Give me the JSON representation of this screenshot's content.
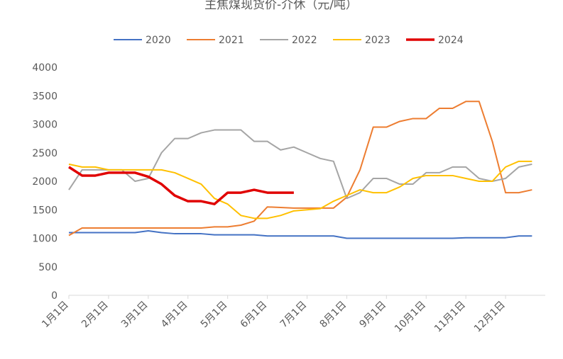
{
  "chart_data": {
    "type": "line",
    "title": "主焦煤现货价-介休（元/吨）",
    "categories": [
      "1月1日",
      null,
      null,
      "2月1日",
      null,
      null,
      "3月1日",
      null,
      null,
      "4月1日",
      null,
      null,
      "5月1日",
      null,
      null,
      "6月1日",
      null,
      null,
      "7月1日",
      null,
      null,
      "8月1日",
      null,
      null,
      "9月1日",
      null,
      null,
      "10月1日",
      null,
      null,
      "11月1日",
      null,
      null,
      "12月1日",
      null,
      null
    ],
    "ylim": [
      0,
      4000
    ],
    "yticks": [
      0,
      500,
      1000,
      1500,
      2000,
      2500,
      3000,
      3500,
      4000
    ],
    "grid": false,
    "series": [
      {
        "name": "2020",
        "color": "#4472c4",
        "width": 2,
        "values": [
          1100,
          1100,
          1100,
          1100,
          1100,
          1100,
          1130,
          1100,
          1080,
          1080,
          1080,
          1060,
          1060,
          1060,
          1060,
          1040,
          1040,
          1040,
          1040,
          1040,
          1040,
          1000,
          1000,
          1000,
          1000,
          1000,
          1000,
          1000,
          1000,
          1000,
          1010,
          1010,
          1010,
          1010,
          1040,
          1040
        ]
      },
      {
        "name": "2021",
        "color": "#ed7d31",
        "width": 2,
        "values": [
          1050,
          1180,
          1180,
          1180,
          1180,
          1180,
          1180,
          1180,
          1180,
          1180,
          1180,
          1200,
          1200,
          1230,
          1300,
          1550,
          1540,
          1530,
          1530,
          1530,
          1530,
          1720,
          2200,
          2950,
          2950,
          3050,
          3100,
          3100,
          3280,
          3280,
          3400,
          3400,
          2700,
          1800,
          1800,
          1850
        ]
      },
      {
        "name": "2022",
        "color": "#a5a5a5",
        "width": 2,
        "values": [
          1850,
          2200,
          2200,
          2200,
          2200,
          2000,
          2050,
          2500,
          2750,
          2750,
          2850,
          2900,
          2900,
          2900,
          2700,
          2700,
          2550,
          2600,
          2500,
          2400,
          2350,
          1700,
          1800,
          2050,
          2050,
          1950,
          1950,
          2150,
          2150,
          2250,
          2250,
          2050,
          2000,
          2050,
          2250,
          2300
        ]
      },
      {
        "name": "2023",
        "color": "#ffc000",
        "width": 2,
        "values": [
          2300,
          2250,
          2250,
          2200,
          2200,
          2200,
          2200,
          2200,
          2150,
          2050,
          1950,
          1700,
          1600,
          1400,
          1350,
          1350,
          1400,
          1480,
          1500,
          1520,
          1650,
          1750,
          1850,
          1800,
          1800,
          1900,
          2050,
          2100,
          2100,
          2100,
          2050,
          2000,
          2000,
          2250,
          2350,
          2350
        ]
      },
      {
        "name": "2024",
        "color": "#e00000",
        "width": 3.5,
        "values": [
          2250,
          2100,
          2100,
          2150,
          2150,
          2150,
          2080,
          1950,
          1750,
          1650,
          1650,
          1600,
          1800,
          1800,
          1850,
          1800,
          1800,
          1800,
          null,
          null,
          null,
          null,
          null,
          null,
          null,
          null,
          null,
          null,
          null,
          null,
          null,
          null,
          null,
          null,
          null,
          null
        ]
      }
    ]
  }
}
